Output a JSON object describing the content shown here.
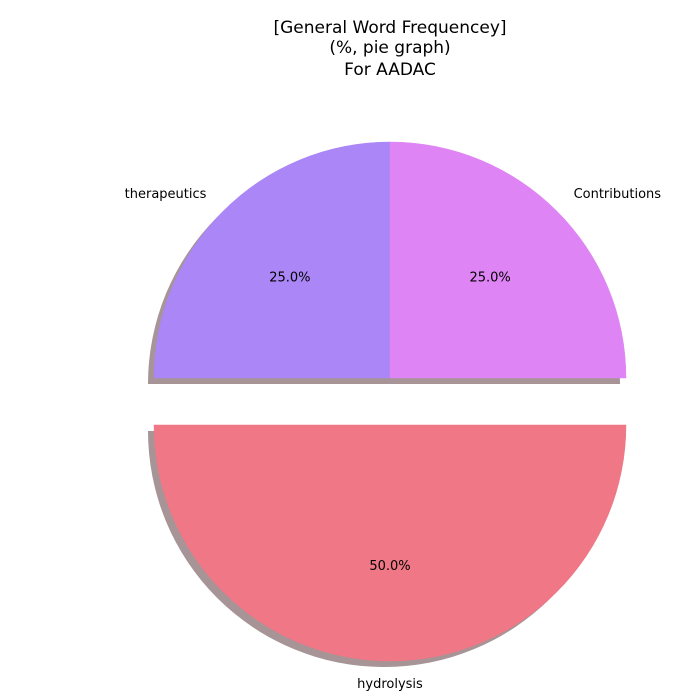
{
  "chart_data": {
    "type": "pie",
    "title": [
      "[General Word Frequencey]",
      "(%, pie graph)",
      "For AADAC"
    ],
    "slices": [
      {
        "label": "therapeutics",
        "value": 25.0,
        "pct_label": "25.0%",
        "color": "#aa86f6",
        "exploded": false
      },
      {
        "label": "hydrolysis",
        "value": 50.0,
        "pct_label": "50.0%",
        "color": "#f07786",
        "exploded": true
      },
      {
        "label": "Contributions",
        "value": 25.0,
        "pct_label": "25.0%",
        "color": "#df84f4",
        "exploded": false
      }
    ],
    "shadow": true,
    "start_angle_deg": 90,
    "direction": "counterclockwise"
  }
}
